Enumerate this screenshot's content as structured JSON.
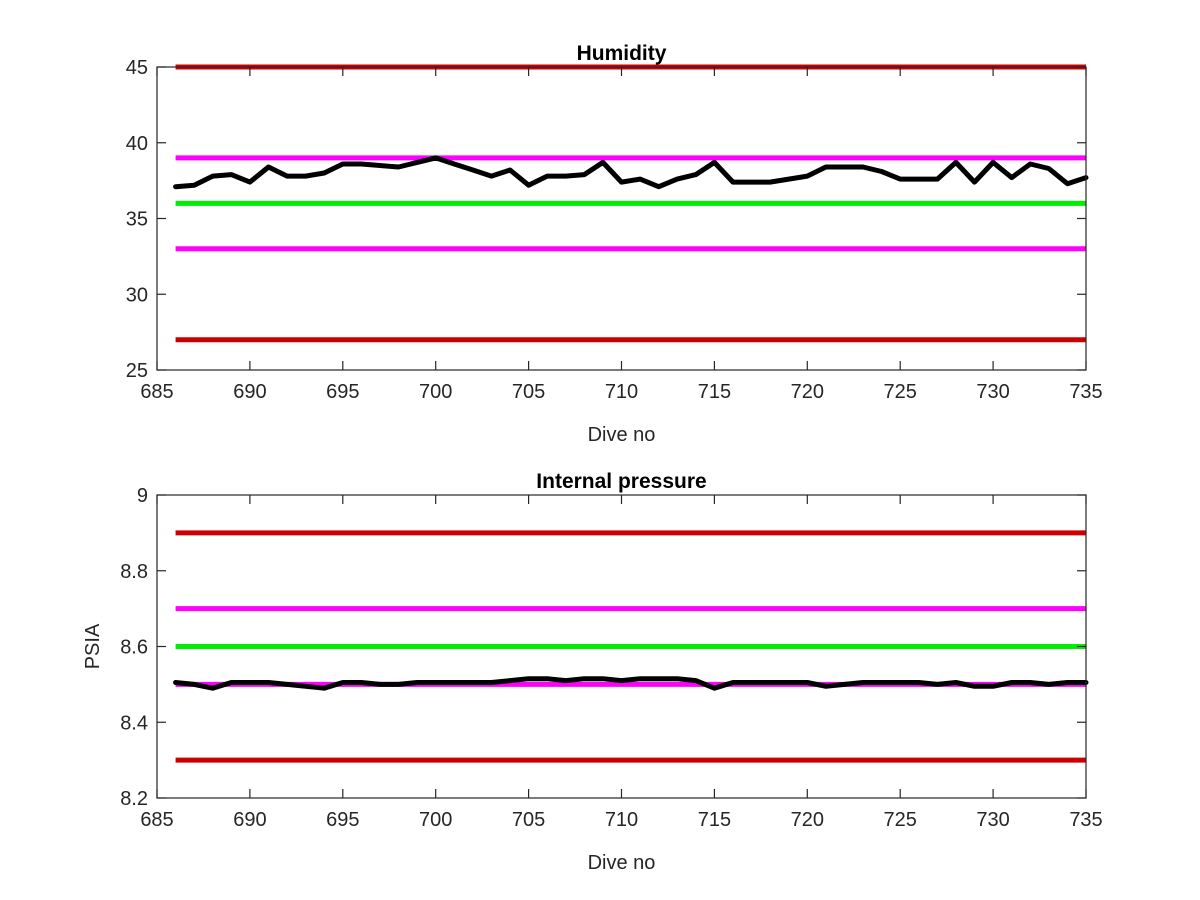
{
  "chart_data": [
    {
      "type": "line",
      "title": "Humidity",
      "xlabel": "Dive no",
      "ylabel": "",
      "xlim": [
        685,
        735
      ],
      "ylim": [
        25,
        45
      ],
      "xticks": [
        "685",
        "690",
        "695",
        "700",
        "705",
        "710",
        "715",
        "720",
        "725",
        "730",
        "735"
      ],
      "yticks": [
        "25",
        "30",
        "35",
        "40",
        "45"
      ],
      "reference_lines": [
        {
          "y": 45,
          "color": "#cc0000"
        },
        {
          "y": 39,
          "color": "#ff00ff"
        },
        {
          "y": 36,
          "color": "#00ee00"
        },
        {
          "y": 33,
          "color": "#ff00ff"
        },
        {
          "y": 27,
          "color": "#cc0000"
        }
      ],
      "series": [
        {
          "color": "#000000",
          "x": [
            686,
            687,
            688,
            689,
            690,
            691,
            692,
            693,
            694,
            695,
            696,
            697,
            698,
            699,
            700,
            701,
            702,
            703,
            704,
            705,
            706,
            707,
            708,
            709,
            710,
            711,
            712,
            713,
            714,
            715,
            716,
            717,
            718,
            719,
            720,
            721,
            722,
            723,
            724,
            725,
            726,
            727,
            728,
            729,
            730,
            731,
            732,
            733,
            734,
            735
          ],
          "y": [
            37.1,
            37.2,
            37.8,
            37.9,
            37.4,
            38.4,
            37.8,
            37.8,
            38.0,
            38.6,
            38.6,
            38.5,
            38.4,
            38.7,
            39.0,
            38.6,
            38.2,
            37.8,
            38.2,
            37.2,
            37.8,
            37.8,
            37.9,
            38.7,
            37.4,
            37.6,
            37.1,
            37.6,
            37.9,
            38.7,
            37.4,
            37.4,
            37.4,
            37.6,
            37.8,
            38.4,
            38.4,
            38.4,
            38.1,
            37.6,
            37.6,
            37.6,
            38.7,
            37.4,
            38.7,
            37.7,
            38.6,
            38.3,
            37.3,
            37.7
          ]
        }
      ]
    },
    {
      "type": "line",
      "title": "Internal pressure",
      "xlabel": "Dive no",
      "ylabel": "PSIA",
      "xlim": [
        685,
        735
      ],
      "ylim": [
        8.2,
        9
      ],
      "xticks": [
        "685",
        "690",
        "695",
        "700",
        "705",
        "710",
        "715",
        "720",
        "725",
        "730",
        "735"
      ],
      "yticks": [
        "8.2",
        "8.4",
        "8.6",
        "8.8",
        "9"
      ],
      "reference_lines": [
        {
          "y": 8.9,
          "color": "#cc0000"
        },
        {
          "y": 8.7,
          "color": "#ff00ff"
        },
        {
          "y": 8.6,
          "color": "#00ee00"
        },
        {
          "y": 8.5,
          "color": "#ff00ff"
        },
        {
          "y": 8.3,
          "color": "#cc0000"
        }
      ],
      "series": [
        {
          "color": "#000000",
          "x": [
            686,
            687,
            688,
            689,
            690,
            691,
            692,
            693,
            694,
            695,
            696,
            697,
            698,
            699,
            700,
            701,
            702,
            703,
            704,
            705,
            706,
            707,
            708,
            709,
            710,
            711,
            712,
            713,
            714,
            715,
            716,
            717,
            718,
            719,
            720,
            721,
            722,
            723,
            724,
            725,
            726,
            727,
            728,
            729,
            730,
            731,
            732,
            733,
            734,
            735
          ],
          "y": [
            8.505,
            8.5,
            8.49,
            8.505,
            8.505,
            8.505,
            8.5,
            8.495,
            8.49,
            8.505,
            8.505,
            8.5,
            8.5,
            8.505,
            8.505,
            8.505,
            8.505,
            8.505,
            8.51,
            8.515,
            8.515,
            8.51,
            8.515,
            8.515,
            8.51,
            8.515,
            8.515,
            8.515,
            8.51,
            8.49,
            8.505,
            8.505,
            8.505,
            8.505,
            8.505,
            8.495,
            8.5,
            8.505,
            8.505,
            8.505,
            8.505,
            8.5,
            8.505,
            8.495,
            8.495,
            8.505,
            8.505,
            8.5,
            8.505,
            8.505
          ]
        }
      ]
    }
  ]
}
